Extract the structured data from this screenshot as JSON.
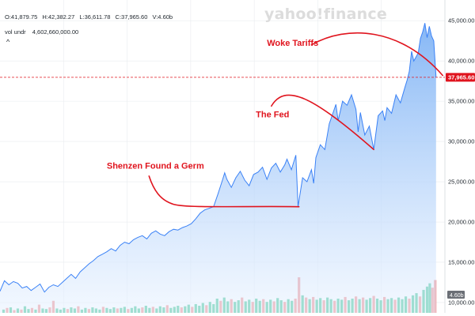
{
  "header": {
    "ohlc": [
      "O:41,879.75",
      "H:42,382.27",
      "L:36,611.78",
      "C:37,965.60",
      "V:4.60b"
    ],
    "volume_label": "vol undr",
    "volume_value": "4,602,660,000.00",
    "collapse_glyph": "^"
  },
  "watermark": "yahoo!finance",
  "current_price_label": "37,965.60",
  "current_volume_label": "4.60b",
  "colors": {
    "line": "#3b82f6",
    "area_top": "#7fb3f5",
    "area_bottom": "#eaf3ff",
    "volume_up": "#2fbf8a",
    "volume_down": "#f08080",
    "price_badge": "#e0141e",
    "volume_badge": "#6b6f76",
    "annotation": "#e0141e"
  },
  "chart_data": {
    "type": "area",
    "y_ticks": [
      {
        "value": 45000,
        "label": "45,000.00"
      },
      {
        "value": 40000,
        "label": "40,000.00"
      },
      {
        "value": 35000,
        "label": "35,000.00"
      },
      {
        "value": 30000,
        "label": "30,000.00"
      },
      {
        "value": 25000,
        "label": "25,000.00"
      },
      {
        "value": 20000,
        "label": "20,000.00"
      },
      {
        "value": 15000,
        "label": "15,000.00"
      },
      {
        "value": 10000,
        "label": "10,000.00"
      }
    ],
    "ylim": [
      9700,
      46000
    ],
    "x_range": [
      0,
      1
    ],
    "price_series": [
      [
        0.0,
        11400
      ],
      [
        0.01,
        12700
      ],
      [
        0.02,
        12200
      ],
      [
        0.03,
        12600
      ],
      [
        0.04,
        12400
      ],
      [
        0.05,
        11800
      ],
      [
        0.06,
        12000
      ],
      [
        0.07,
        11500
      ],
      [
        0.08,
        11900
      ],
      [
        0.09,
        12300
      ],
      [
        0.1,
        11300
      ],
      [
        0.11,
        11900
      ],
      [
        0.12,
        12200
      ],
      [
        0.13,
        12000
      ],
      [
        0.14,
        12500
      ],
      [
        0.15,
        13000
      ],
      [
        0.16,
        13500
      ],
      [
        0.17,
        13000
      ],
      [
        0.18,
        13800
      ],
      [
        0.19,
        14300
      ],
      [
        0.2,
        14800
      ],
      [
        0.21,
        15200
      ],
      [
        0.22,
        15700
      ],
      [
        0.23,
        16000
      ],
      [
        0.24,
        16300
      ],
      [
        0.25,
        16700
      ],
      [
        0.26,
        16400
      ],
      [
        0.27,
        17100
      ],
      [
        0.28,
        17500
      ],
      [
        0.29,
        17300
      ],
      [
        0.3,
        17800
      ],
      [
        0.31,
        18100
      ],
      [
        0.32,
        18300
      ],
      [
        0.33,
        17900
      ],
      [
        0.34,
        18600
      ],
      [
        0.35,
        18900
      ],
      [
        0.36,
        18500
      ],
      [
        0.37,
        18300
      ],
      [
        0.38,
        18800
      ],
      [
        0.39,
        19100
      ],
      [
        0.4,
        19000
      ],
      [
        0.41,
        19300
      ],
      [
        0.42,
        19500
      ],
      [
        0.43,
        19800
      ],
      [
        0.44,
        20400
      ],
      [
        0.45,
        21100
      ],
      [
        0.46,
        21500
      ],
      [
        0.47,
        21700
      ],
      [
        0.48,
        21900
      ],
      [
        0.49,
        23500
      ],
      [
        0.5,
        25200
      ],
      [
        0.505,
        26100
      ],
      [
        0.51,
        25300
      ],
      [
        0.52,
        24300
      ],
      [
        0.53,
        25500
      ],
      [
        0.54,
        26300
      ],
      [
        0.55,
        25200
      ],
      [
        0.56,
        24500
      ],
      [
        0.57,
        25900
      ],
      [
        0.58,
        26200
      ],
      [
        0.59,
        26800
      ],
      [
        0.6,
        25300
      ],
      [
        0.61,
        26700
      ],
      [
        0.62,
        27300
      ],
      [
        0.63,
        26200
      ],
      [
        0.64,
        27100
      ],
      [
        0.645,
        27800
      ],
      [
        0.655,
        26500
      ],
      [
        0.665,
        28300
      ],
      [
        0.67,
        21900
      ],
      [
        0.68,
        25500
      ],
      [
        0.69,
        25000
      ],
      [
        0.7,
        26500
      ],
      [
        0.705,
        24800
      ],
      [
        0.71,
        28000
      ],
      [
        0.72,
        29600
      ],
      [
        0.73,
        29000
      ],
      [
        0.74,
        32200
      ],
      [
        0.75,
        33800
      ],
      [
        0.755,
        34600
      ],
      [
        0.76,
        32600
      ],
      [
        0.77,
        35000
      ],
      [
        0.78,
        34500
      ],
      [
        0.79,
        35800
      ],
      [
        0.8,
        34000
      ],
      [
        0.805,
        31200
      ],
      [
        0.81,
        33600
      ],
      [
        0.82,
        30800
      ],
      [
        0.83,
        31900
      ],
      [
        0.84,
        29000
      ],
      [
        0.85,
        33200
      ],
      [
        0.86,
        33800
      ],
      [
        0.865,
        32600
      ],
      [
        0.87,
        34200
      ],
      [
        0.88,
        33500
      ],
      [
        0.89,
        35800
      ],
      [
        0.9,
        34800
      ],
      [
        0.91,
        36700
      ],
      [
        0.915,
        37600
      ],
      [
        0.92,
        38700
      ],
      [
        0.925,
        41200
      ],
      [
        0.93,
        40000
      ],
      [
        0.94,
        41000
      ],
      [
        0.945,
        42800
      ],
      [
        0.95,
        43600
      ],
      [
        0.955,
        44700
      ],
      [
        0.96,
        42900
      ],
      [
        0.965,
        44300
      ],
      [
        0.97,
        43100
      ],
      [
        0.975,
        42500
      ],
      [
        0.98,
        37965.6
      ]
    ],
    "volume_bars": [
      [
        0.008,
        0.6,
        "up"
      ],
      [
        0.016,
        0.9,
        "down"
      ],
      [
        0.024,
        1.0,
        "up"
      ],
      [
        0.032,
        0.5,
        "down"
      ],
      [
        0.04,
        0.8,
        "up"
      ],
      [
        0.048,
        0.6,
        "down"
      ],
      [
        0.056,
        1.2,
        "up"
      ],
      [
        0.064,
        0.7,
        "up"
      ],
      [
        0.072,
        0.9,
        "down"
      ],
      [
        0.08,
        0.6,
        "up"
      ],
      [
        0.088,
        1.5,
        "down"
      ],
      [
        0.096,
        0.8,
        "up"
      ],
      [
        0.104,
        0.7,
        "up"
      ],
      [
        0.112,
        1.0,
        "down"
      ],
      [
        0.12,
        2.2,
        "down"
      ],
      [
        0.128,
        0.8,
        "up"
      ],
      [
        0.136,
        0.6,
        "up"
      ],
      [
        0.144,
        0.9,
        "up"
      ],
      [
        0.152,
        0.7,
        "down"
      ],
      [
        0.16,
        1.0,
        "up"
      ],
      [
        0.168,
        0.8,
        "up"
      ],
      [
        0.176,
        1.2,
        "down"
      ],
      [
        0.184,
        0.6,
        "up"
      ],
      [
        0.192,
        0.9,
        "up"
      ],
      [
        0.2,
        0.7,
        "down"
      ],
      [
        0.208,
        1.0,
        "up"
      ],
      [
        0.216,
        0.8,
        "up"
      ],
      [
        0.224,
        0.6,
        "up"
      ],
      [
        0.232,
        1.1,
        "down"
      ],
      [
        0.24,
        0.9,
        "up"
      ],
      [
        0.248,
        0.7,
        "up"
      ],
      [
        0.256,
        1.0,
        "up"
      ],
      [
        0.264,
        0.8,
        "down"
      ],
      [
        0.272,
        0.9,
        "up"
      ],
      [
        0.28,
        1.1,
        "up"
      ],
      [
        0.288,
        0.7,
        "down"
      ],
      [
        0.296,
        0.9,
        "up"
      ],
      [
        0.304,
        1.2,
        "up"
      ],
      [
        0.312,
        0.8,
        "up"
      ],
      [
        0.32,
        1.0,
        "down"
      ],
      [
        0.328,
        1.3,
        "up"
      ],
      [
        0.336,
        0.9,
        "up"
      ],
      [
        0.344,
        1.1,
        "down"
      ],
      [
        0.352,
        0.8,
        "up"
      ],
      [
        0.36,
        1.2,
        "up"
      ],
      [
        0.368,
        1.0,
        "up"
      ],
      [
        0.376,
        1.4,
        "down"
      ],
      [
        0.384,
        0.9,
        "up"
      ],
      [
        0.392,
        1.1,
        "up"
      ],
      [
        0.4,
        1.3,
        "up"
      ],
      [
        0.408,
        1.0,
        "down"
      ],
      [
        0.416,
        1.2,
        "up"
      ],
      [
        0.424,
        1.5,
        "up"
      ],
      [
        0.432,
        1.1,
        "down"
      ],
      [
        0.44,
        1.6,
        "up"
      ],
      [
        0.448,
        1.3,
        "up"
      ],
      [
        0.456,
        1.8,
        "up"
      ],
      [
        0.464,
        1.4,
        "down"
      ],
      [
        0.472,
        2.0,
        "up"
      ],
      [
        0.48,
        1.6,
        "up"
      ],
      [
        0.488,
        2.6,
        "up"
      ],
      [
        0.496,
        2.2,
        "down"
      ],
      [
        0.504,
        2.8,
        "up"
      ],
      [
        0.512,
        2.1,
        "up"
      ],
      [
        0.52,
        2.5,
        "down"
      ],
      [
        0.528,
        2.0,
        "up"
      ],
      [
        0.536,
        2.3,
        "up"
      ],
      [
        0.544,
        2.8,
        "down"
      ],
      [
        0.552,
        2.1,
        "up"
      ],
      [
        0.56,
        2.4,
        "up"
      ],
      [
        0.568,
        2.0,
        "down"
      ],
      [
        0.576,
        2.6,
        "up"
      ],
      [
        0.584,
        2.2,
        "up"
      ],
      [
        0.592,
        2.5,
        "down"
      ],
      [
        0.6,
        2.0,
        "up"
      ],
      [
        0.608,
        2.4,
        "up"
      ],
      [
        0.616,
        2.1,
        "down"
      ],
      [
        0.624,
        2.7,
        "up"
      ],
      [
        0.632,
        2.3,
        "up"
      ],
      [
        0.64,
        2.0,
        "down"
      ],
      [
        0.648,
        2.5,
        "up"
      ],
      [
        0.656,
        2.2,
        "up"
      ],
      [
        0.664,
        2.6,
        "down"
      ],
      [
        0.672,
        6.5,
        "down"
      ],
      [
        0.68,
        3.2,
        "up"
      ],
      [
        0.688,
        2.8,
        "down"
      ],
      [
        0.696,
        2.5,
        "up"
      ],
      [
        0.704,
        2.9,
        "down"
      ],
      [
        0.712,
        2.4,
        "up"
      ],
      [
        0.72,
        2.7,
        "up"
      ],
      [
        0.728,
        2.3,
        "down"
      ],
      [
        0.736,
        2.8,
        "up"
      ],
      [
        0.744,
        2.5,
        "up"
      ],
      [
        0.752,
        2.2,
        "down"
      ],
      [
        0.76,
        2.6,
        "up"
      ],
      [
        0.768,
        2.4,
        "up"
      ],
      [
        0.776,
        2.9,
        "down"
      ],
      [
        0.784,
        2.3,
        "up"
      ],
      [
        0.792,
        2.6,
        "up"
      ],
      [
        0.8,
        3.0,
        "down"
      ],
      [
        0.808,
        2.5,
        "up"
      ],
      [
        0.816,
        2.8,
        "down"
      ],
      [
        0.824,
        2.4,
        "up"
      ],
      [
        0.832,
        2.7,
        "up"
      ],
      [
        0.84,
        3.1,
        "down"
      ],
      [
        0.848,
        2.6,
        "up"
      ],
      [
        0.856,
        2.3,
        "up"
      ],
      [
        0.864,
        2.9,
        "down"
      ],
      [
        0.872,
        2.5,
        "up"
      ],
      [
        0.88,
        2.7,
        "up"
      ],
      [
        0.888,
        2.4,
        "down"
      ],
      [
        0.896,
        2.8,
        "up"
      ],
      [
        0.904,
        2.5,
        "up"
      ],
      [
        0.912,
        3.0,
        "up"
      ],
      [
        0.92,
        2.6,
        "down"
      ],
      [
        0.928,
        3.2,
        "up"
      ],
      [
        0.936,
        3.6,
        "up"
      ],
      [
        0.944,
        3.0,
        "down"
      ],
      [
        0.952,
        4.2,
        "up"
      ],
      [
        0.96,
        4.8,
        "up"
      ],
      [
        0.966,
        5.4,
        "up"
      ],
      [
        0.972,
        4.6,
        "down"
      ],
      [
        0.978,
        6.0,
        "down"
      ]
    ],
    "annotations": [
      {
        "label": "Woke Tariffs",
        "x": 0.6,
        "y": 41900
      },
      {
        "label": "The Fed",
        "x": 0.575,
        "y": 33000
      },
      {
        "label": "Shenzen Found a Germ",
        "x": 0.24,
        "y": 26600
      }
    ]
  }
}
